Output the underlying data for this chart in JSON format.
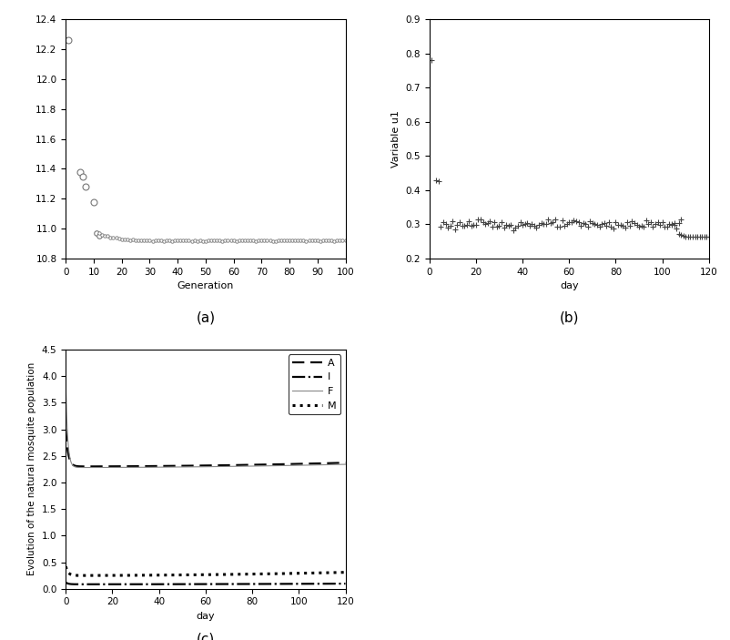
{
  "plot_a": {
    "xlabel": "Generation",
    "ylabel": "",
    "xlim": [
      0,
      100
    ],
    "ylim": [
      10.8,
      12.4
    ],
    "yticks": [
      10.8,
      11.0,
      11.2,
      11.4,
      11.6,
      11.8,
      12.0,
      12.2,
      12.4
    ],
    "xticks": [
      0,
      10,
      20,
      30,
      40,
      50,
      60,
      70,
      80,
      90,
      100
    ],
    "label": "(a)"
  },
  "plot_b": {
    "xlabel": "day",
    "ylabel": "Variable u1",
    "xlim": [
      0,
      120
    ],
    "ylim": [
      0.2,
      0.9
    ],
    "yticks": [
      0.2,
      0.3,
      0.4,
      0.5,
      0.6,
      0.7,
      0.8,
      0.9
    ],
    "xticks": [
      0,
      20,
      40,
      60,
      80,
      100,
      120
    ],
    "label": "(b)"
  },
  "plot_c": {
    "xlabel": "day",
    "ylabel": "Evolution of the natural mosquite population",
    "xlim": [
      0,
      120
    ],
    "ylim": [
      0,
      4.5
    ],
    "yticks": [
      0.0,
      0.5,
      1.0,
      1.5,
      2.0,
      2.5,
      3.0,
      3.5,
      4.0,
      4.5
    ],
    "xticks": [
      0,
      20,
      40,
      60,
      80,
      100,
      120
    ],
    "label": "(c)",
    "legend_labels": [
      "A",
      "I",
      "F",
      "M"
    ]
  },
  "bg": "white"
}
